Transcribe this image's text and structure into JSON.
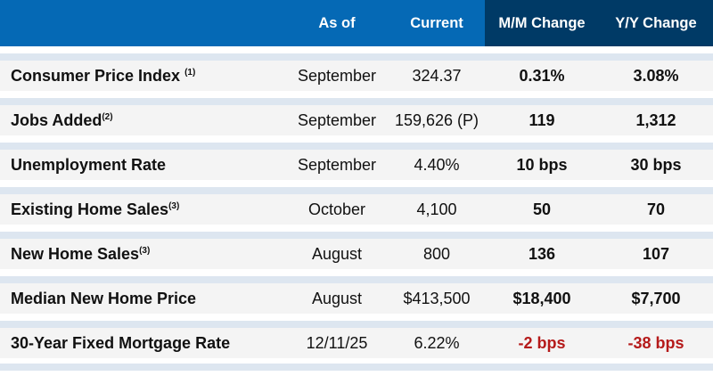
{
  "header": {
    "as_of": "As of",
    "current": "Current",
    "mm_change": "M/M Change",
    "yy_change": "Y/Y Change"
  },
  "colors": {
    "header_blue": "#0569b5",
    "header_dark": "#003a66",
    "negative": "#b51a1a",
    "stripe": "#dde6f0"
  },
  "rows": [
    {
      "label": "Consumer Price Index ",
      "note": "(1)",
      "as_of": "September",
      "current": "324.37",
      "mm": "0.31%",
      "yy": "3.08%",
      "mm_negative": false,
      "yy_negative": false
    },
    {
      "label": "Jobs Added",
      "note": "(2)",
      "as_of": "September",
      "current": "159,626 (P)",
      "mm": "119",
      "yy": "1,312",
      "mm_negative": false,
      "yy_negative": false
    },
    {
      "label": "Unemployment Rate",
      "note": "",
      "as_of": "September",
      "current": "4.40%",
      "mm": "10 bps",
      "yy": "30 bps",
      "mm_negative": false,
      "yy_negative": false
    },
    {
      "label": "Existing Home Sales",
      "note": "(3)",
      "as_of": "October",
      "current": "4,100",
      "mm": "50",
      "yy": "70",
      "mm_negative": false,
      "yy_negative": false
    },
    {
      "label": "New Home Sales",
      "note": "(3)",
      "as_of": "August",
      "current": "800",
      "mm": "136",
      "yy": "107",
      "mm_negative": false,
      "yy_negative": false
    },
    {
      "label": "Median New Home Price",
      "note": "",
      "as_of": "August",
      "current": "$413,500",
      "mm": "$18,400",
      "yy": "$7,700",
      "mm_negative": false,
      "yy_negative": false
    },
    {
      "label": "30-Year Fixed Mortgage Rate",
      "note": "",
      "as_of": "12/11/25",
      "current": "6.22%",
      "mm": "-2 bps",
      "yy": "-38 bps",
      "mm_negative": true,
      "yy_negative": true
    }
  ]
}
